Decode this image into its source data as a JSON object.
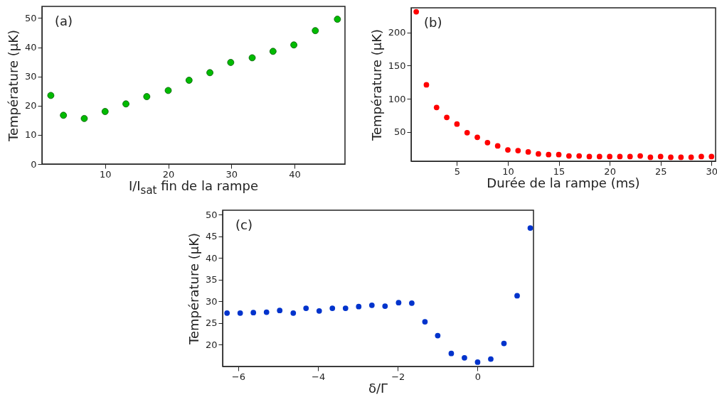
{
  "chart_data": [
    {
      "type": "scatter",
      "xlabel": "I/I$_{sat}$ fin de la rampe",
      "ylabel": "Température (µK)",
      "annotations": [
        "(a)"
      ],
      "x": [
        1.4,
        3.4,
        6.7,
        10,
        13.3,
        16.6,
        20,
        23.3,
        26.6,
        29.9,
        33.3,
        36.6,
        39.9,
        43.3,
        46.8
      ],
      "series": [
        {
          "color": "#00bb00",
          "values": [
            23.5,
            16.7,
            15.6,
            18,
            20.6,
            23.1,
            25.2,
            28.7,
            31.3,
            34.8,
            36.4,
            38.6,
            40.8,
            45.7,
            49.6
          ]
        }
      ],
      "xlim": [
        0,
        48
      ],
      "xticks": [
        10,
        20,
        30,
        40
      ],
      "ylim": [
        0,
        54
      ],
      "yticks": [
        0,
        10,
        20,
        30,
        40,
        50
      ],
      "marker": "circle"
    },
    {
      "type": "scatter",
      "xlabel": "Durée de la rampe (ms)",
      "ylabel": "Température (µK)",
      "annotations": [
        "(b)"
      ],
      "x": [
        1,
        2,
        3,
        4,
        5,
        6,
        7,
        8,
        9,
        10,
        11,
        12,
        13,
        14,
        15,
        16,
        17,
        18,
        19,
        20,
        21,
        22,
        23,
        24,
        25,
        26,
        27,
        28,
        29,
        30
      ],
      "series": [
        {
          "color": "#ff0000",
          "values": [
            231,
            121,
            87,
            72,
            62,
            49,
            42,
            34,
            29,
            23,
            22,
            20,
            17,
            16,
            16,
            14,
            14,
            13,
            13,
            13,
            13,
            13,
            14,
            12,
            13,
            12,
            12,
            12,
            13,
            13
          ]
        }
      ],
      "xlim": [
        0.5,
        30.4
      ],
      "xticks": [
        5,
        10,
        15,
        20,
        25,
        30
      ],
      "ylim": [
        6,
        237
      ],
      "yticks": [
        50,
        100,
        150,
        200
      ],
      "marker": "circle"
    },
    {
      "type": "scatter",
      "xlabel": "δ/Γ",
      "ylabel": "Température (µK)",
      "annotations": [
        "(c)"
      ],
      "x": [
        -6.28,
        -5.95,
        -5.62,
        -5.29,
        -4.96,
        -4.62,
        -4.3,
        -3.97,
        -3.64,
        -3.31,
        -2.98,
        -2.65,
        -2.32,
        -1.98,
        -1.65,
        -1.32,
        -1,
        -0.66,
        -0.33,
        0,
        0.33,
        0.66,
        0.99,
        1.32
      ],
      "series": [
        {
          "color": "#0033cc",
          "values": [
            27.3,
            27.3,
            27.4,
            27.5,
            27.9,
            27.3,
            28.4,
            27.8,
            28.4,
            28.4,
            28.8,
            29.1,
            28.9,
            29.7,
            29.6,
            25.3,
            22.1,
            18,
            17,
            16,
            16.7,
            20.3,
            31.3,
            46.9
          ]
        }
      ],
      "xlim": [
        -6.39,
        1.4
      ],
      "xticks": [
        -6,
        -4,
        -2,
        0
      ],
      "ylim": [
        15,
        51
      ],
      "yticks": [
        20,
        25,
        30,
        35,
        40,
        45,
        50
      ],
      "marker": "circle"
    }
  ]
}
